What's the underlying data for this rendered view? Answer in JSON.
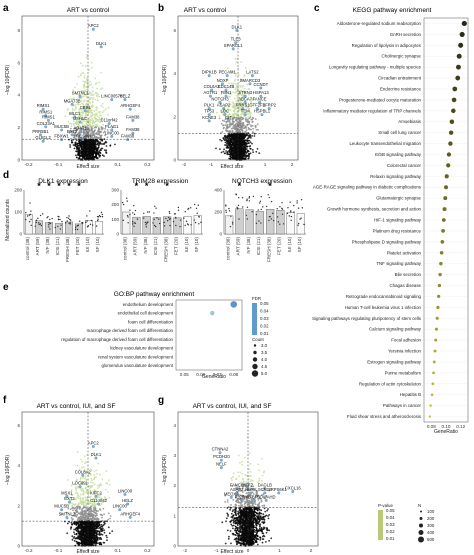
{
  "figure": {
    "panel_letters": [
      "a",
      "b",
      "c",
      "d",
      "e",
      "f",
      "g"
    ]
  },
  "chart_data": [
    {
      "id": "a",
      "type": "scatter",
      "title": "ART vs control",
      "xlabel": "Effect size",
      "ylabel": "−log 10(FDR)",
      "xticks": [
        "-0.2",
        "-0.1",
        "0",
        "0.1",
        "0.2"
      ],
      "yticks": [
        "0",
        "2",
        "4",
        "6",
        "8"
      ],
      "xlim": [
        -0.25,
        0.25
      ],
      "ylim": [
        0,
        9
      ],
      "threshold_y": 1.3,
      "labels": [
        {
          "text": "APC2",
          "x": 0.02,
          "y": 8.3
        },
        {
          "text": "DLK1",
          "x": 0.05,
          "y": 7.2
        },
        {
          "text": "SMTNL2",
          "x": -0.03,
          "y": 4.1
        },
        {
          "text": "MGAT3B",
          "x": -0.06,
          "y": 3.6
        },
        {
          "text": "LINC00578",
          "x": 0.09,
          "y": 3.9
        },
        {
          "text": "HELZ",
          "x": 0.14,
          "y": 3.9
        },
        {
          "text": "CBR1",
          "x": -0.01,
          "y": 3.2
        },
        {
          "text": "RIMS1",
          "x": -0.17,
          "y": 3.3
        },
        {
          "text": "ARHGEF4",
          "x": 0.16,
          "y": 3.3
        },
        {
          "text": "RIMS1",
          "x": -0.16,
          "y": 2.9
        },
        {
          "text": "RIMS1",
          "x": -0.15,
          "y": 2.6
        },
        {
          "text": "MLC1",
          "x": -0.05,
          "y": 2.8
        },
        {
          "text": "USH1C",
          "x": -0.03,
          "y": 2.5
        },
        {
          "text": "C11orf42",
          "x": 0.08,
          "y": 2.4
        },
        {
          "text": "FAM38",
          "x": 0.17,
          "y": 2.6
        },
        {
          "text": "COL23A1",
          "x": -0.16,
          "y": 2.2
        },
        {
          "text": "MUC5B",
          "x": -0.1,
          "y": 2.0
        },
        {
          "text": "ADAT1",
          "x": -0.03,
          "y": 1.9
        },
        {
          "text": "PLAG1",
          "x": 0.09,
          "y": 2.0
        },
        {
          "text": "FAM38",
          "x": 0.17,
          "y": 1.8
        },
        {
          "text": "PRR5B1",
          "x": -0.18,
          "y": 1.7
        },
        {
          "text": "EXT2",
          "x": -0.06,
          "y": 1.7
        },
        {
          "text": "GLB1L2",
          "x": -0.17,
          "y": 1.3
        },
        {
          "text": "FBXW1",
          "x": -0.1,
          "y": 1.4
        },
        {
          "text": "PACSIN1",
          "x": -0.02,
          "y": 1.4
        },
        {
          "text": "LINC00",
          "x": 0.09,
          "y": 1.6
        },
        {
          "text": "FAM38",
          "x": 0.15,
          "y": 1.4
        }
      ]
    },
    {
      "id": "b",
      "type": "scatter",
      "title": "ART vs control",
      "xlabel": "Effect size",
      "ylabel": "−log 10(FDR)",
      "xticks": [
        "-2",
        "-1",
        "0",
        "1",
        "2"
      ],
      "yticks": [
        "0",
        "2",
        "4",
        "6"
      ],
      "xlim": [
        -2.5,
        2.5
      ],
      "ylim": [
        0,
        7
      ],
      "threshold_y": 1.3,
      "labels": [
        {
          "text": "DLK1",
          "x": -0.05,
          "y": 6.4
        },
        {
          "text": "TLE3",
          "x": -0.1,
          "y": 5.8
        },
        {
          "text": "SPARCL1",
          "x": -0.2,
          "y": 5.5
        },
        {
          "text": "DIPK1B",
          "x": -1.2,
          "y": 4.2
        },
        {
          "text": "PECAM1",
          "x": -0.45,
          "y": 4.2
        },
        {
          "text": "LATS2",
          "x": 0.6,
          "y": 4.2
        },
        {
          "text": "NOXF",
          "x": -0.65,
          "y": 3.8
        },
        {
          "text": "SMARCD3",
          "x": 0.5,
          "y": 3.8
        },
        {
          "text": "COL6A3",
          "x": -1.1,
          "y": 3.5
        },
        {
          "text": "CDC14B",
          "x": -0.5,
          "y": 3.5
        },
        {
          "text": "CCNDT",
          "x": 0.95,
          "y": 3.6
        },
        {
          "text": "AGTR1",
          "x": -1.15,
          "y": 3.2
        },
        {
          "text": "FBN1",
          "x": -0.5,
          "y": 3.2
        },
        {
          "text": "STRN3",
          "x": 0.3,
          "y": 3.2
        },
        {
          "text": "HSPA13",
          "x": 0.95,
          "y": 3.2
        },
        {
          "text": "NOTCH3",
          "x": -0.75,
          "y": 2.9
        },
        {
          "text": "ABCA7",
          "x": 0.3,
          "y": 2.9
        },
        {
          "text": "FANCE",
          "x": 0.9,
          "y": 2.9
        },
        {
          "text": "PLK1",
          "x": -1.2,
          "y": 2.6
        },
        {
          "text": "ASAP2",
          "x": -0.6,
          "y": 2.6
        },
        {
          "text": "FRRS1",
          "x": 0.2,
          "y": 2.6
        },
        {
          "text": "GTF2F2",
          "x": 0.8,
          "y": 2.6
        },
        {
          "text": "SFRP2",
          "x": 1.3,
          "y": 2.6
        },
        {
          "text": "TP53",
          "x": -1.2,
          "y": 2.3
        },
        {
          "text": "LOC",
          "x": -0.55,
          "y": 2.3
        },
        {
          "text": "TEM",
          "x": 0.3,
          "y": 2.3
        },
        {
          "text": "HSPBL1",
          "x": 1.0,
          "y": 2.3
        },
        {
          "text": "KCNE3",
          "x": -1.2,
          "y": 2.0
        },
        {
          "text": "CIT",
          "x": -0.4,
          "y": 2.0
        }
      ]
    },
    {
      "id": "c",
      "type": "scatter",
      "title": "KEGG pathway enrichment",
      "xlabel": "GeneRatio",
      "xticks": [
        "0.08",
        "0.10",
        "0.12"
      ],
      "xlim": [
        0.07,
        0.13
      ],
      "categories": [
        "Aldosterone-regulated sodium reabsorption",
        "GnRH secretion",
        "Regulation of lipolysis in adipocytes",
        "Cholinergic synapse",
        "Longevity regulating pathway - multiple species",
        "Circadian entrainment",
        "Endocrine resistance",
        "Progesterone-mediated oocyte maturation",
        "Inflammatory mediator regulation of TRP channels",
        "Amoebiasis",
        "Small cell lung cancer",
        "Leukocyte transendothelial migration",
        "ErbB signaling pathway",
        "Colorectal cancer",
        "Relaxin signaling pathway",
        "AGE-RAGE signaling pathway in diabetic complications",
        "Glutamatergic synapse",
        "Growth hormone synthesis, secretion and action",
        "HIF-1 signaling pathway",
        "Platinum drug resistance",
        "Phospholipase D signaling pathway",
        "Platelet activation",
        "TNF signaling pathway",
        "Bile secretion",
        "Chagas disease",
        "Retrograde endocannabinoid signaling",
        "Human T-cell leukemia virus 1 infection",
        "Signaling pathways regulating pluripotency of stem cells",
        "Calcium signaling pathway",
        "Focal adhesion",
        "Yersinia infection",
        "Estrogen signaling pathway",
        "Purine metabolism",
        "Regulation of actin cytoskeleton",
        "Hepatitis B",
        "Pathways in cancer",
        "Fluid shear stress and atherosclerosis"
      ],
      "values": [
        0.125,
        0.122,
        0.12,
        0.118,
        0.117,
        0.116,
        0.112,
        0.111,
        0.11,
        0.108,
        0.107,
        0.106,
        0.104,
        0.103,
        0.101,
        0.1,
        0.099,
        0.098,
        0.097,
        0.096,
        0.095,
        0.094,
        0.093,
        0.092,
        0.091,
        0.09,
        0.089,
        0.088,
        0.087,
        0.086,
        0.085,
        0.084,
        0.083,
        0.082,
        0.081,
        0.079,
        0.078
      ]
    },
    {
      "id": "d",
      "type": "bar",
      "titles": [
        "DLK1 expression",
        "TRIM28 expression",
        "NOTCH3 expression"
      ],
      "ylabel": "Normalized counts",
      "categories": [
        "control (38)",
        "ART (59)",
        "IVF (38)",
        "ICSI (21)",
        "FRESH (38)",
        "FET (20)",
        "IUI (10)",
        "SF (10)"
      ],
      "series": [
        {
          "values": [
            88,
            60,
            52,
            48,
            55,
            46,
            62,
            58
          ],
          "stars": [
            false,
            true,
            true,
            true,
            true,
            true,
            false,
            false
          ],
          "yticks": [
            "0",
            "100",
            "200"
          ],
          "ymax": 200
        },
        {
          "values": [
            150,
            115,
            120,
            112,
            118,
            110,
            118,
            125
          ],
          "stars": [
            false,
            true,
            true,
            false,
            true,
            false,
            false,
            false
          ],
          "yticks": [
            "0",
            "100",
            "200",
            "300"
          ],
          "ymax": 300
        },
        {
          "values": [
            165,
            230,
            220,
            205,
            225,
            215,
            195,
            185
          ],
          "stars": [
            false,
            true,
            false,
            false,
            true,
            false,
            false,
            false
          ],
          "yticks": [
            "0",
            "200",
            "400"
          ],
          "ymax": 400
        }
      ]
    },
    {
      "id": "e",
      "type": "scatter",
      "title": "GO:BP pathway enrichment",
      "xlabel": "GeneRatio",
      "xticks": [
        "0.05",
        "0.06",
        "0.07",
        "0.08"
      ],
      "xlim": [
        0.045,
        0.085
      ],
      "categories": [
        "endothelium development",
        "endothelial cell development",
        "foam cell differentiation",
        "macrophage derived foam cell differentiation",
        "regulation of macrophage derived foam cell differentiation",
        "kidney vasculature development",
        "renal system vasculature development",
        "glomerulus vasculature development"
      ],
      "values": [
        0.08,
        0.067,
        null,
        null,
        null,
        null,
        null,
        null
      ],
      "legend": {
        "fdr_title": "FDR",
        "fdr_ticks": [
          "0.05",
          "0.04",
          "0.03",
          "0.02",
          "0.01"
        ],
        "count_title": "Count",
        "count_ticks": [
          "3.0",
          "3.5",
          "4.0",
          "4.5",
          "5.0"
        ]
      }
    },
    {
      "id": "f",
      "type": "scatter",
      "title": "ART vs control, IUI, and SF",
      "xlabel": "Effect size",
      "ylabel": "−log 10(FDR)",
      "xticks": [
        "-0.2",
        "-0.1",
        "0",
        "0.1",
        "0.2"
      ],
      "yticks": [
        "0",
        "2",
        "4",
        "6"
      ],
      "xlim": [
        -0.25,
        0.25
      ],
      "ylim": [
        0,
        7
      ],
      "threshold_y": 1.3,
      "labels": [
        {
          "text": "APC2",
          "x": 0.02,
          "y": 5.3
        },
        {
          "text": "DLK1",
          "x": 0.03,
          "y": 4.7
        },
        {
          "text": "COL8A2",
          "x": -0.02,
          "y": 3.8
        },
        {
          "text": "LOC691",
          "x": -0.03,
          "y": 3.2
        },
        {
          "text": "MSX1",
          "x": -0.08,
          "y": 2.7
        },
        {
          "text": "KIFC2",
          "x": 0.03,
          "y": 2.7
        },
        {
          "text": "LINC00",
          "x": 0.14,
          "y": 2.8
        },
        {
          "text": "EXT2",
          "x": -0.07,
          "y": 2.4
        },
        {
          "text": "C11orf42",
          "x": 0.04,
          "y": 2.3
        },
        {
          "text": "HELZ",
          "x": 0.15,
          "y": 2.3
        },
        {
          "text": "MUC5B",
          "x": -0.1,
          "y": 2.0
        },
        {
          "text": "LINC00",
          "x": 0.12,
          "y": 2.0
        },
        {
          "text": "SMTNL2",
          "x": -0.08,
          "y": 1.6
        },
        {
          "text": "ARHGEF4",
          "x": 0.16,
          "y": 1.6
        }
      ]
    },
    {
      "id": "g",
      "type": "scatter",
      "title": "ART vs control, IUI, and SF",
      "xlabel": "Effect size",
      "ylabel": "−log 10(FDR)",
      "xticks": [
        "-2",
        "-1",
        "0",
        "1",
        "2"
      ],
      "yticks": [
        "0",
        "1",
        "2",
        "3",
        "4"
      ],
      "xlim": [
        -2.5,
        2.5
      ],
      "ylim": [
        0,
        4.5
      ],
      "threshold_y": 1.3,
      "labels": [
        {
          "text": "CTNNA2",
          "x": -1.0,
          "y": 3.2
        },
        {
          "text": "PCDH20",
          "x": -0.95,
          "y": 2.95
        },
        {
          "text": "NELF",
          "x": -0.95,
          "y": 2.7
        },
        {
          "text": "FANCE",
          "x": -0.4,
          "y": 2.0
        },
        {
          "text": "ATF2",
          "x": 0.0,
          "y": 2.0
        },
        {
          "text": "DAGLB",
          "x": 0.6,
          "y": 2.0
        },
        {
          "text": "ASAP2",
          "x": -0.4,
          "y": 1.85
        },
        {
          "text": "HUNK",
          "x": 0.1,
          "y": 1.85
        },
        {
          "text": "SCN2B",
          "x": 0.6,
          "y": 1.85
        },
        {
          "text": "RPS6K1",
          "x": 1.1,
          "y": 1.85
        },
        {
          "text": "CXCL16",
          "x": 1.6,
          "y": 1.9
        },
        {
          "text": "MEOX2",
          "x": -0.6,
          "y": 1.7
        },
        {
          "text": "PJ2RY2",
          "x": -0.2,
          "y": 1.6
        },
        {
          "text": "LTBP3",
          "x": 0.2,
          "y": 1.6
        },
        {
          "text": "SOWAHD",
          "x": 0.65,
          "y": 1.6
        }
      ],
      "legend": {
        "pvalue_title": "P-value",
        "pvalue_ticks": [
          "0.05",
          "0.04",
          "0.03",
          "0.02",
          "0.01"
        ],
        "n_title": "N",
        "n_ticks": [
          "100",
          "200",
          "300",
          "400",
          "500"
        ]
      }
    }
  ]
}
